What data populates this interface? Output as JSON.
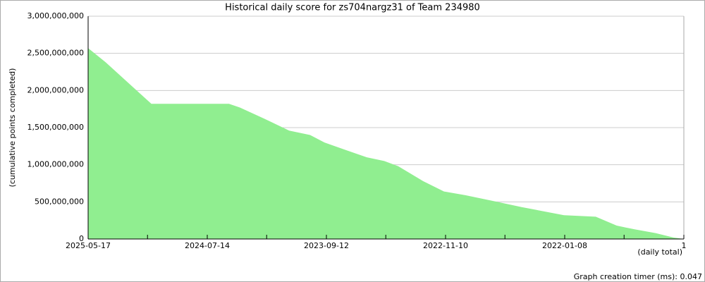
{
  "chart_data": {
    "type": "area",
    "title": "Historical daily score for zs704nargz31 of Team 234980",
    "y_label": "(cumulative points completed)",
    "x_label": "(daily total)",
    "footer": "Graph creation timer (ms): 0.047",
    "color": "#90ee90",
    "grid": true,
    "x": [
      1536,
      1491,
      1373,
      1173,
      1145,
      1082,
      1018,
      964,
      927,
      873,
      818,
      773,
      737,
      673,
      619,
      564,
      491,
      419,
      310,
      228,
      174,
      128,
      74,
      28,
      1
    ],
    "values": [
      2570000000,
      2380000000,
      1820000000,
      1820000000,
      1770000000,
      1620000000,
      1460000000,
      1400000000,
      1300000000,
      1200000000,
      1100000000,
      1050000000,
      980000000,
      780000000,
      640000000,
      590000000,
      510000000,
      430000000,
      320000000,
      300000000,
      180000000,
      130000000,
      80000000,
      20000000,
      0
    ],
    "xlim": [
      1536,
      1
    ],
    "xticks": [
      {
        "value": 1536,
        "label": "2025-05-17"
      },
      {
        "value": 1229,
        "label": "2024-07-14"
      },
      {
        "value": 922,
        "label": "2023-09-12"
      },
      {
        "value": 615,
        "label": "2022-11-10"
      },
      {
        "value": 308,
        "label": "2022-01-08"
      },
      1
    ],
    "xminorticks": [
      1383,
      1076,
      769,
      462,
      155
    ],
    "ylim": [
      0,
      3000000000
    ],
    "yticks": [
      0,
      {
        "value": 500000000,
        "label": "500,000,000"
      },
      {
        "value": 1000000000,
        "label": "1,000,000,000"
      },
      {
        "value": 1500000000,
        "label": "1,500,000,000"
      },
      {
        "value": 2000000000,
        "label": "2,000,000,000"
      },
      {
        "value": 2500000000,
        "label": "2,500,000,000"
      },
      {
        "value": 3000000000,
        "label": "3,000,000,000"
      }
    ]
  }
}
